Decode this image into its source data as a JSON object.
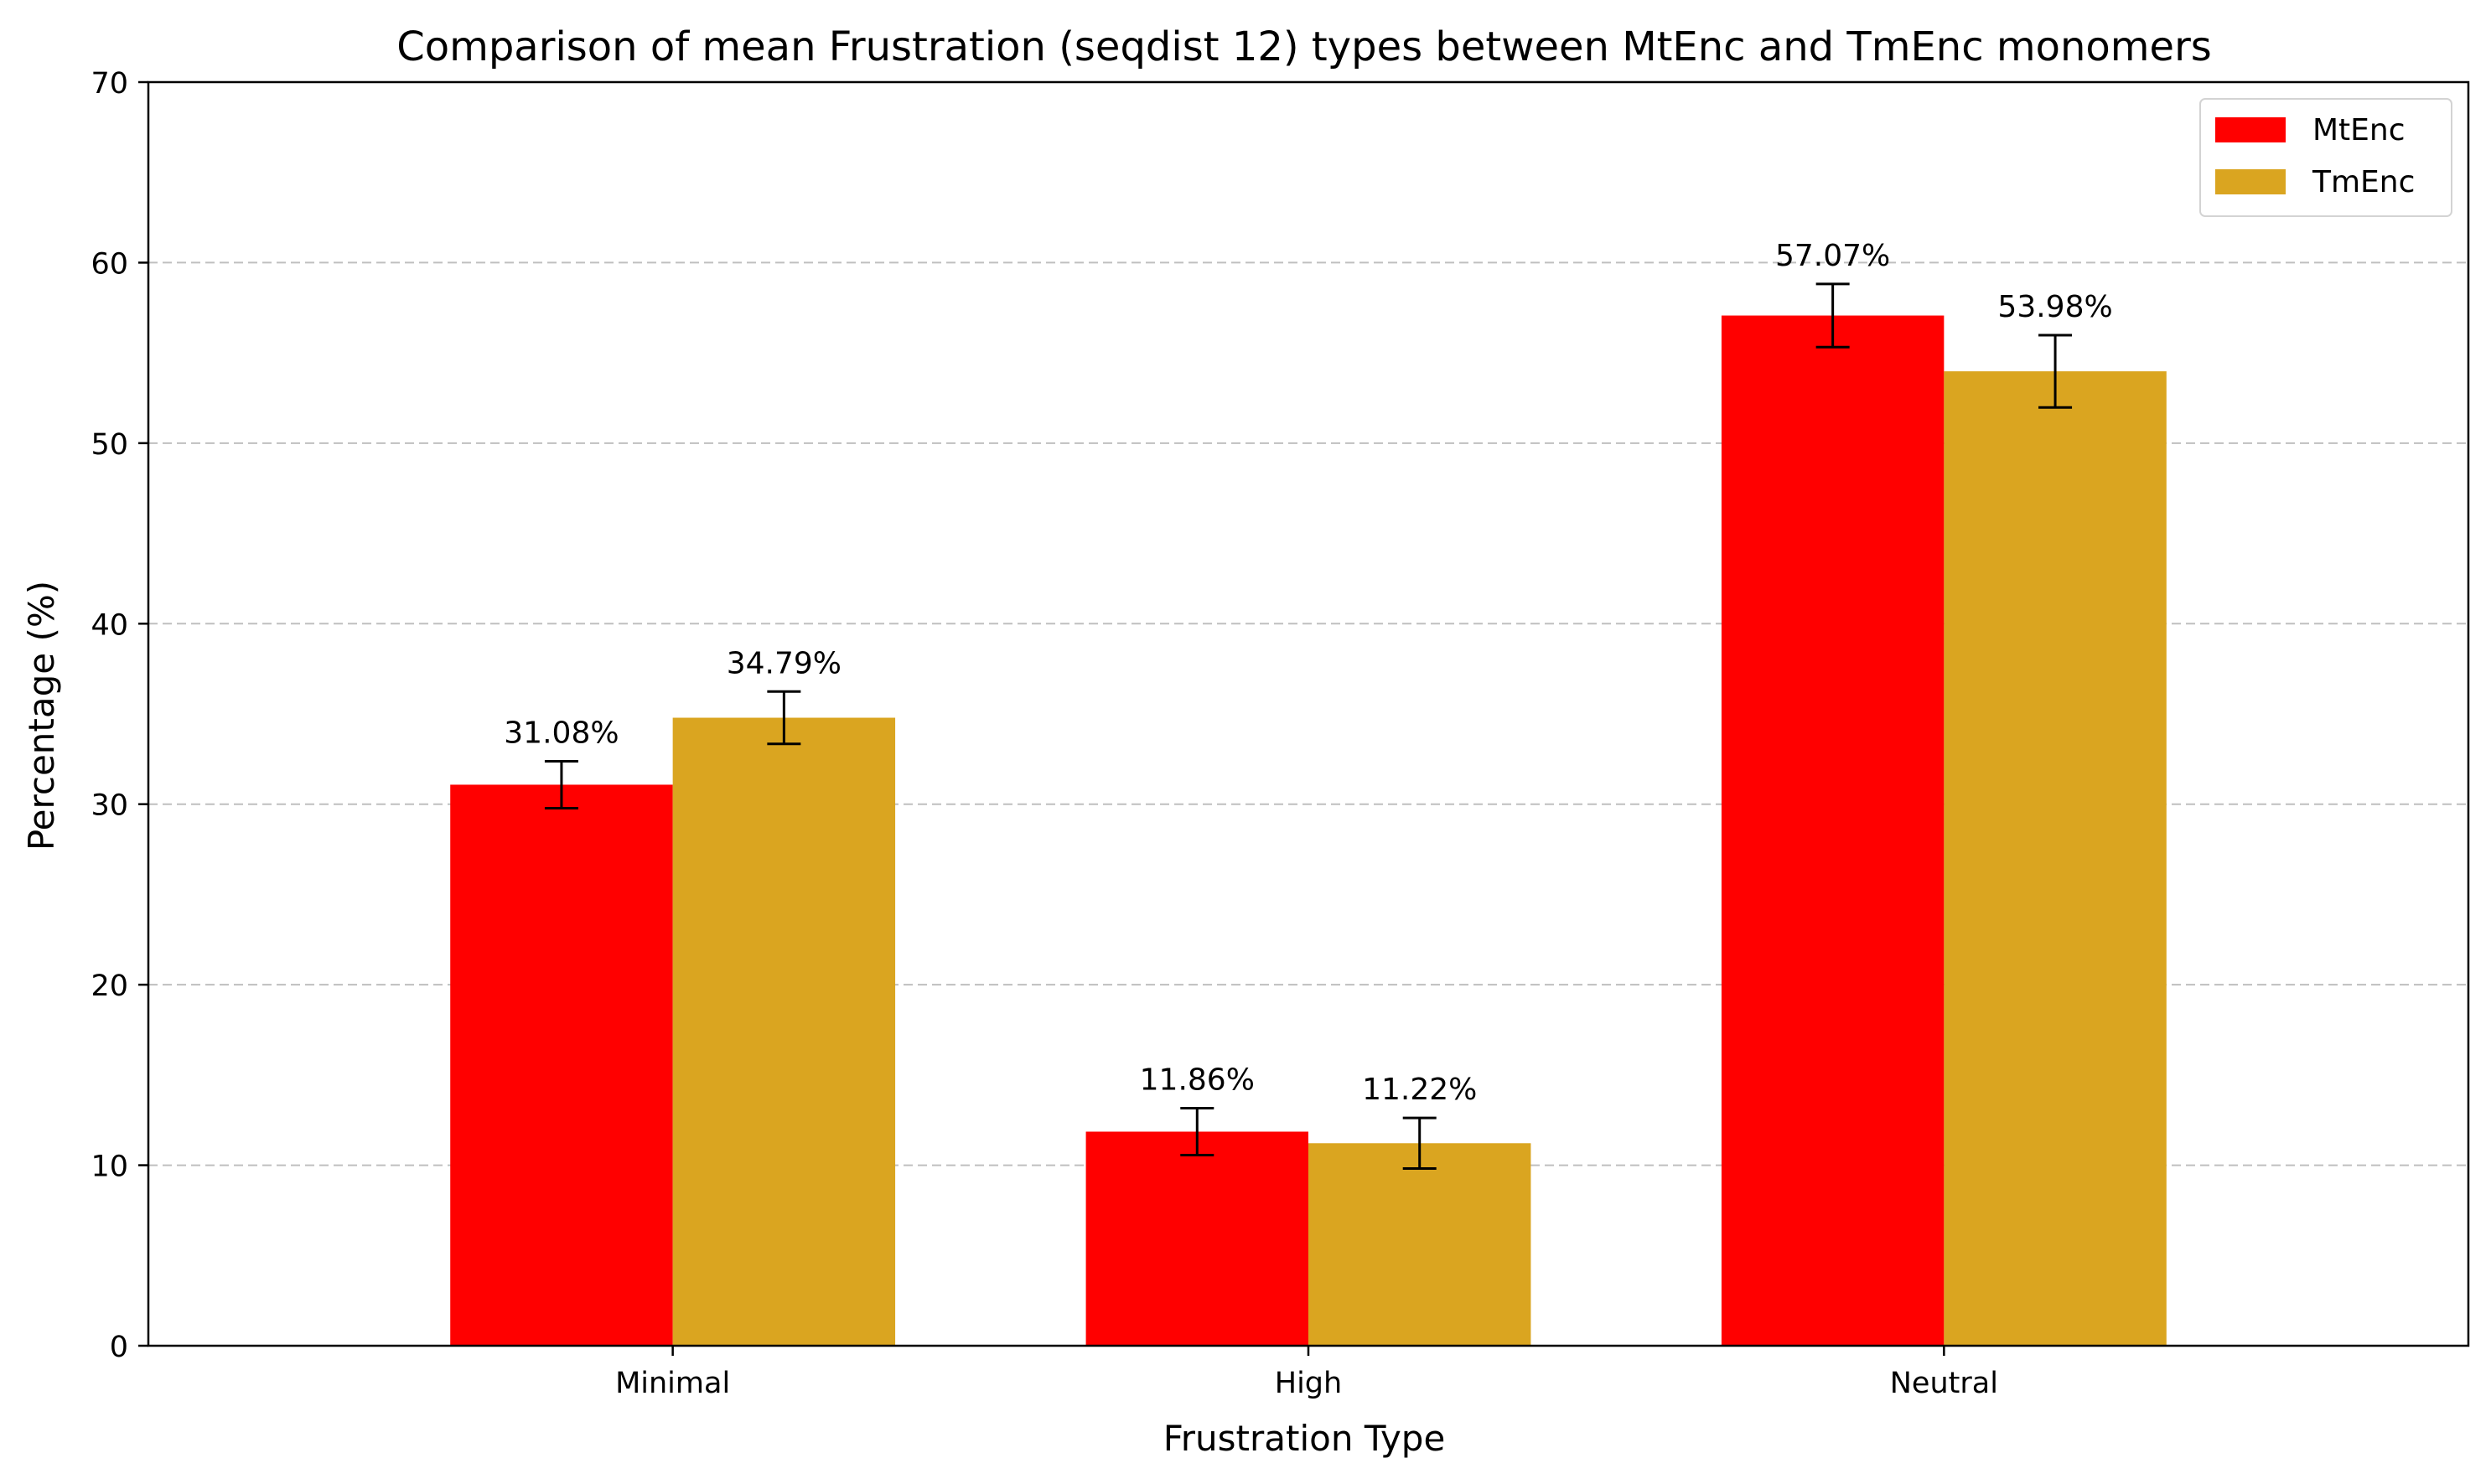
{
  "chart_data": {
    "type": "bar",
    "title": "Comparison of mean Frustration (seqdist 12) types between MtEnc and TmEnc monomers",
    "xlabel": "Frustration Type",
    "ylabel": "Percentage (%)",
    "ylim": [
      0,
      70
    ],
    "yticks": [
      "0",
      "10",
      "20",
      "30",
      "40",
      "50",
      "60",
      "70"
    ],
    "categories": [
      "Minimal",
      "High",
      "Neutral"
    ],
    "grid": "y-dashed",
    "legend_position": "top-right",
    "series": [
      {
        "name": "MtEnc",
        "color": "#ff0000",
        "values": [
          31.08,
          11.86,
          57.07
        ],
        "errors": [
          1.3,
          1.3,
          1.75
        ],
        "labels": [
          "31.08%",
          "11.86%",
          "57.07%"
        ]
      },
      {
        "name": "TmEnc",
        "color": "#daa520",
        "values": [
          34.79,
          11.22,
          53.98
        ],
        "errors": [
          1.45,
          1.4,
          2.0
        ],
        "labels": [
          "34.79%",
          "11.22%",
          "53.98%"
        ]
      }
    ]
  }
}
